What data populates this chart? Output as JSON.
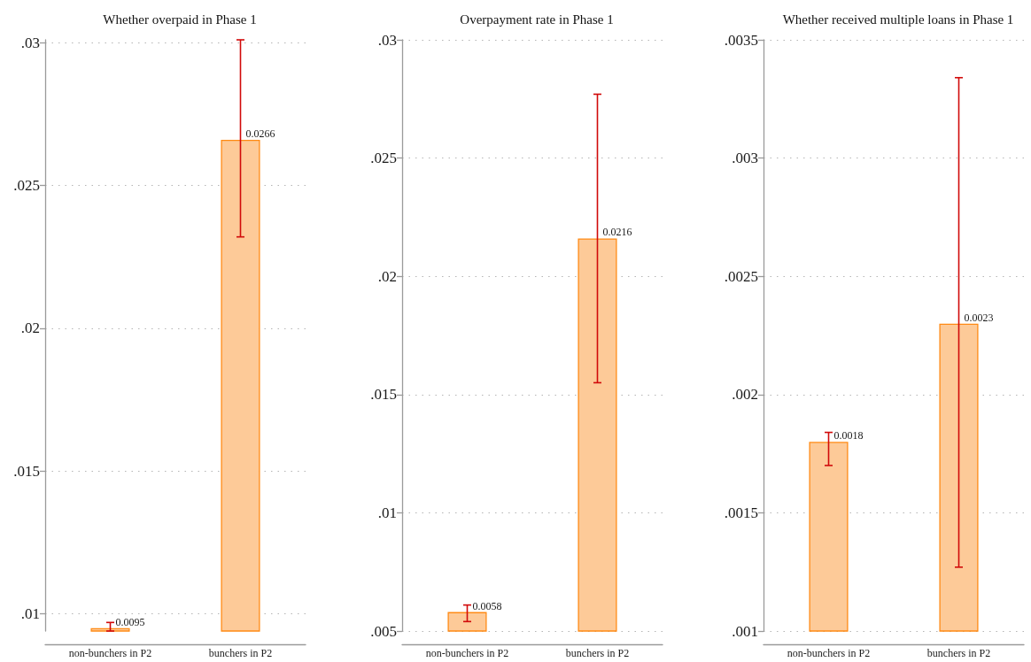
{
  "chart_data": [
    {
      "type": "bar",
      "title": "Whether overpaid in Phase 1",
      "categories": [
        "non-bunchers in P2",
        "bunchers in P2"
      ],
      "values": [
        0.0095,
        0.0266
      ],
      "color": "#fdca98",
      "errors": [
        [
          0.0094,
          0.0097
        ],
        [
          0.0232,
          0.0301
        ]
      ],
      "data_labels": true,
      "ylim": [
        0.0094,
        0.0301
      ],
      "yticks": [
        {
          "value": 0.01,
          "label": ".01"
        },
        {
          "value": 0.015,
          "label": ".015"
        },
        {
          "value": 0.02,
          "label": ".02"
        },
        {
          "value": 0.025,
          "label": ".025"
        },
        {
          "value": 0.03,
          "label": ".03"
        }
      ],
      "grid": "y"
    },
    {
      "type": "bar",
      "title": "Overpayment rate in Phase 1",
      "categories": [
        "non-bunchers in P2",
        "bunchers in P2"
      ],
      "values": [
        0.0058,
        0.0216
      ],
      "color": "#fdca98",
      "errors": [
        [
          0.0054,
          0.0061
        ],
        [
          0.0155,
          0.0277
        ]
      ],
      "data_labels": true,
      "ylim": [
        0.005,
        0.03
      ],
      "yticks": [
        {
          "value": 0.005,
          "label": ".005"
        },
        {
          "value": 0.01,
          "label": ".01"
        },
        {
          "value": 0.015,
          "label": ".015"
        },
        {
          "value": 0.02,
          "label": ".02"
        },
        {
          "value": 0.025,
          "label": ".025"
        },
        {
          "value": 0.03,
          "label": ".03"
        }
      ],
      "grid": "y"
    },
    {
      "type": "bar",
      "title": "Whether received multiple loans in Phase 1",
      "categories": [
        "non-bunchers in P2",
        "bunchers in P2"
      ],
      "values": [
        0.0018,
        0.0023
      ],
      "color": "#fdca98",
      "errors": [
        [
          0.0017,
          0.00184
        ],
        [
          0.00127,
          0.00334
        ]
      ],
      "data_labels": true,
      "ylim": [
        0.001,
        0.0035
      ],
      "yticks": [
        {
          "value": 0.001,
          "label": ".001"
        },
        {
          "value": 0.0015,
          "label": ".0015"
        },
        {
          "value": 0.002,
          "label": ".002"
        },
        {
          "value": 0.0025,
          "label": ".0025"
        },
        {
          "value": 0.003,
          "label": ".003"
        },
        {
          "value": 0.0035,
          "label": ".0035"
        }
      ],
      "grid": "y"
    }
  ]
}
